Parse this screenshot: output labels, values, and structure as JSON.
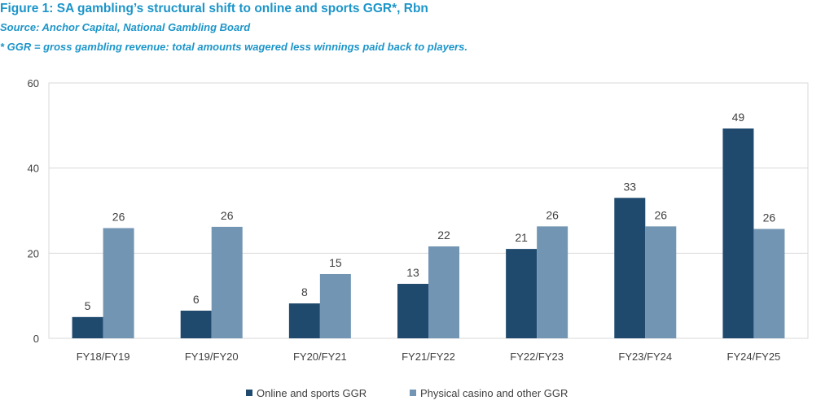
{
  "header": {
    "title": "Figure 1: SA gambling’s structural shift to online and sports GGR*, Rbn",
    "source": "Source: Anchor Capital, National Gambling Board",
    "note": "* GGR = gross gambling revenue: total amounts wagered less winnings paid back to players."
  },
  "chart_data": {
    "type": "bar",
    "title": "",
    "xlabel": "",
    "ylabel": "",
    "ylim": [
      0,
      60
    ],
    "yticks": [
      0,
      20,
      40,
      60
    ],
    "grid": true,
    "legend_position": "bottom",
    "categories": [
      "FY18/FY19",
      "FY19/FY20",
      "FY20/FY21",
      "FY21/FY22",
      "FY22/FY23",
      "FY23/FY24",
      "FY24/FY25"
    ],
    "series": [
      {
        "name": "Online and sports GGR",
        "color": "#1f4a6e",
        "values": [
          5,
          6.5,
          8.2,
          12.8,
          21,
          33,
          49.3
        ],
        "labels": [
          "5",
          "6",
          "8",
          "13",
          "21",
          "33",
          "49"
        ]
      },
      {
        "name": "Physical casino and other GGR",
        "color": "#7395b4",
        "values": [
          25.9,
          26.2,
          15.1,
          21.6,
          26.3,
          26.3,
          25.7
        ],
        "labels": [
          "26",
          "26",
          "15",
          "22",
          "26",
          "26",
          "26"
        ]
      }
    ]
  }
}
